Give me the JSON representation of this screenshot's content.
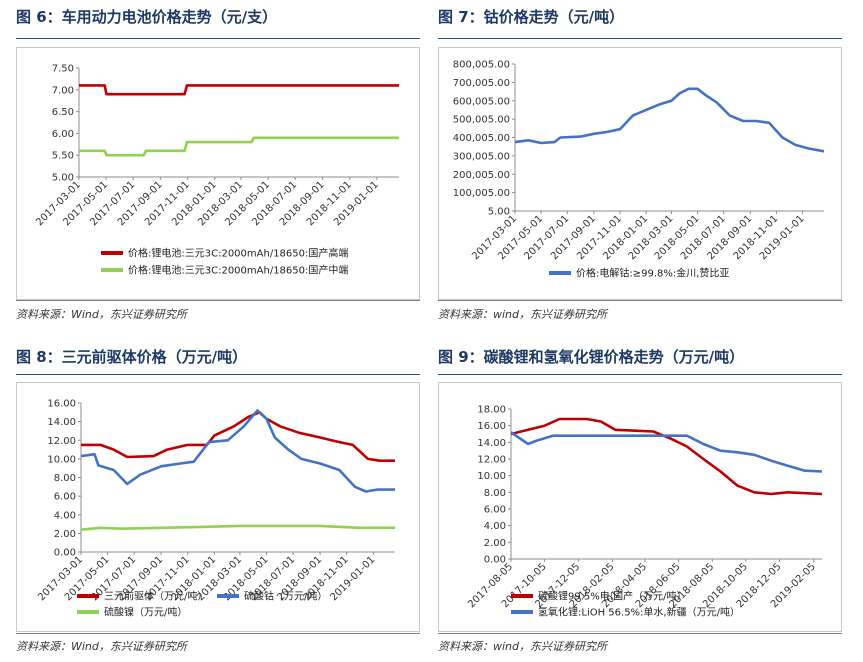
{
  "panels": [
    {
      "id": "fig6",
      "title": "图 6：车用动力电池价格走势（元/支）",
      "source": "资料来源：Wind，东兴证券研究所"
    },
    {
      "id": "fig7",
      "title": "图 7：钴价格走势（元/吨）",
      "source": "资料来源：wind，东兴证券研究所"
    },
    {
      "id": "fig8",
      "title": "图 8：三元前驱体价格（万元/吨）",
      "source": "资料来源：Wind，东兴证券研究所"
    },
    {
      "id": "fig9",
      "title": "图 9：碳酸锂和氢氧化锂价格走势（万元/吨）",
      "source": "资料来源：wind，东兴证券研究所"
    }
  ],
  "chart_data": [
    {
      "type": "line",
      "title": "图 6：车用动力电池价格走势（元/支）",
      "x_ticks": [
        "2017-03-01",
        "2017-05-01",
        "2017-07-01",
        "2017-09-01",
        "2017-11-01",
        "2018-01-01",
        "2018-03-01",
        "2018-05-01",
        "2018-07-01",
        "2018-09-01",
        "2018-11-01",
        "2019-01-01"
      ],
      "ylim": [
        5.0,
        7.5
      ],
      "y_ticks": [
        "5.00",
        "5.50",
        "6.00",
        "6.50",
        "7.00",
        "7.50"
      ],
      "grid": false,
      "legend": "bottom",
      "series": [
        {
          "name": "价格:锂电池:三元3C:2000mAh/18650:国产高端",
          "color": "#c00000",
          "points": [
            [
              "2017-03-01",
              7.1
            ],
            [
              "2017-04-28",
              7.1
            ],
            [
              "2017-05-02",
              6.9
            ],
            [
              "2017-10-25",
              6.9
            ],
            [
              "2017-10-30",
              7.1
            ],
            [
              "2019-02-20",
              7.1
            ]
          ]
        },
        {
          "name": "价格:锂电池:三元3C:2000mAh/18650:国产中端",
          "color": "#92d050",
          "points": [
            [
              "2017-03-01",
              5.6
            ],
            [
              "2017-04-28",
              5.6
            ],
            [
              "2017-05-02",
              5.5
            ],
            [
              "2017-07-25",
              5.5
            ],
            [
              "2017-07-30",
              5.6
            ],
            [
              "2017-10-25",
              5.6
            ],
            [
              "2017-10-30",
              5.8
            ],
            [
              "2018-03-25",
              5.8
            ],
            [
              "2018-03-30",
              5.9
            ],
            [
              "2019-02-20",
              5.9
            ]
          ]
        }
      ]
    },
    {
      "type": "line",
      "title": "图 7：钴价格走势（元/吨）",
      "x_ticks": [
        "2017-03-01",
        "2017-05-01",
        "2017-07-01",
        "2017-09-01",
        "2017-11-01",
        "2018-01-01",
        "2018-03-01",
        "2018-05-01",
        "2018-07-01",
        "2018-09-01",
        "2018-11-01",
        "2019-01-01"
      ],
      "ylim": [
        5,
        800005
      ],
      "y_ticks": [
        "5.00",
        "100,005.00",
        "200,005.00",
        "300,005.00",
        "400,005.00",
        "500,005.00",
        "600,005.00",
        "700,005.00",
        "800,005.00"
      ],
      "grid": false,
      "legend": "bottom",
      "series": [
        {
          "name": "价格:电解钴:≥99.8%:金川,赞比亚",
          "color": "#4472c4",
          "points": [
            [
              "2017-03-01",
              375000
            ],
            [
              "2017-04-01",
              385000
            ],
            [
              "2017-05-01",
              370000
            ],
            [
              "2017-06-01",
              375000
            ],
            [
              "2017-06-15",
              400000
            ],
            [
              "2017-08-01",
              405000
            ],
            [
              "2017-09-01",
              420000
            ],
            [
              "2017-10-01",
              430000
            ],
            [
              "2017-11-01",
              445000
            ],
            [
              "2017-12-01",
              520000
            ],
            [
              "2018-01-01",
              550000
            ],
            [
              "2018-02-01",
              580000
            ],
            [
              "2018-03-01",
              600000
            ],
            [
              "2018-03-20",
              640000
            ],
            [
              "2018-04-10",
              665000
            ],
            [
              "2018-05-01",
              665000
            ],
            [
              "2018-05-20",
              630000
            ],
            [
              "2018-06-15",
              590000
            ],
            [
              "2018-07-15",
              520000
            ],
            [
              "2018-08-15",
              490000
            ],
            [
              "2018-09-15",
              490000
            ],
            [
              "2018-10-15",
              480000
            ],
            [
              "2018-11-15",
              400000
            ],
            [
              "2018-12-15",
              360000
            ],
            [
              "2019-01-15",
              340000
            ],
            [
              "2019-02-20",
              325000
            ]
          ]
        }
      ]
    },
    {
      "type": "line",
      "title": "图 8：三元前驱体价格（万元/吨）",
      "x_ticks": [
        "2017-03-01",
        "2017-05-01",
        "2017-07-01",
        "2017-09-01",
        "2017-11-01",
        "2018-01-01",
        "2018-03-01",
        "2018-05-01",
        "2018-07-01",
        "2018-09-01",
        "2018-11-01",
        "2019-01-01"
      ],
      "ylim": [
        0,
        16
      ],
      "y_ticks": [
        "0.00",
        "2.00",
        "4.00",
        "6.00",
        "8.00",
        "10.00",
        "12.00",
        "14.00",
        "16.00"
      ],
      "grid": false,
      "legend": "bottom",
      "series": [
        {
          "name": "三元前驱体（万元/吨）",
          "color": "#c00000",
          "points": [
            [
              "2017-03-01",
              11.5
            ],
            [
              "2017-04-15",
              11.5
            ],
            [
              "2017-05-15",
              11.0
            ],
            [
              "2017-06-15",
              10.2
            ],
            [
              "2017-08-15",
              10.3
            ],
            [
              "2017-09-15",
              11.0
            ],
            [
              "2017-11-01",
              11.5
            ],
            [
              "2017-12-15",
              11.5
            ],
            [
              "2018-01-01",
              12.5
            ],
            [
              "2018-02-15",
              13.5
            ],
            [
              "2018-03-20",
              14.5
            ],
            [
              "2018-04-15",
              15.0
            ],
            [
              "2018-05-01",
              14.3
            ],
            [
              "2018-06-01",
              13.5
            ],
            [
              "2018-07-15",
              12.8
            ],
            [
              "2018-09-01",
              12.3
            ],
            [
              "2018-10-15",
              11.8
            ],
            [
              "2018-11-15",
              11.5
            ],
            [
              "2018-12-20",
              10.0
            ],
            [
              "2019-01-15",
              9.8
            ],
            [
              "2019-02-20",
              9.8
            ]
          ]
        },
        {
          "name": "硫酸钴（万元/吨）",
          "color": "#4472c4",
          "points": [
            [
              "2017-03-01",
              10.3
            ],
            [
              "2017-04-01",
              10.5
            ],
            [
              "2017-04-10",
              9.3
            ],
            [
              "2017-05-15",
              8.8
            ],
            [
              "2017-06-15",
              7.3
            ],
            [
              "2017-07-15",
              8.3
            ],
            [
              "2017-09-01",
              9.2
            ],
            [
              "2017-10-15",
              9.5
            ],
            [
              "2017-11-15",
              9.7
            ],
            [
              "2017-12-20",
              11.8
            ],
            [
              "2018-02-01",
              12.0
            ],
            [
              "2018-03-10",
              13.5
            ],
            [
              "2018-04-10",
              15.2
            ],
            [
              "2018-05-01",
              14.3
            ],
            [
              "2018-05-20",
              12.3
            ],
            [
              "2018-06-20",
              11.0
            ],
            [
              "2018-07-20",
              10.0
            ],
            [
              "2018-09-01",
              9.5
            ],
            [
              "2018-10-15",
              8.8
            ],
            [
              "2018-11-20",
              7.0
            ],
            [
              "2018-12-15",
              6.5
            ],
            [
              "2019-01-10",
              6.7
            ],
            [
              "2019-02-20",
              6.7
            ]
          ]
        },
        {
          "name": "硫酸镍（万元/吨）",
          "color": "#92d050",
          "points": [
            [
              "2017-03-01",
              2.4
            ],
            [
              "2017-04-15",
              2.6
            ],
            [
              "2017-06-01",
              2.5
            ],
            [
              "2017-09-01",
              2.6
            ],
            [
              "2017-12-01",
              2.7
            ],
            [
              "2018-03-01",
              2.8
            ],
            [
              "2018-06-01",
              2.8
            ],
            [
              "2018-09-01",
              2.8
            ],
            [
              "2018-12-01",
              2.6
            ],
            [
              "2019-02-20",
              2.6
            ]
          ]
        }
      ]
    },
    {
      "type": "line",
      "title": "图 9：碳酸锂和氢氧化锂价格走势（万元/吨）",
      "x_ticks": [
        "2017-08-05",
        "2017-10-05",
        "2017-12-05",
        "2018-02-05",
        "2018-04-05",
        "2018-06-05",
        "2018-08-05",
        "2018-10-05",
        "2018-12-05",
        "2019-02-05"
      ],
      "ylim": [
        0,
        18
      ],
      "y_ticks": [
        "0.00",
        "2.00",
        "4.00",
        "6.00",
        "8.00",
        "10.00",
        "12.00",
        "14.00",
        "16.00",
        "18.00"
      ],
      "grid": false,
      "legend": "bottom",
      "series": [
        {
          "name": "碳酸锂99.5%电:国产（万元/吨）",
          "color": "#c00000",
          "points": [
            [
              "2017-08-05",
              15.0
            ],
            [
              "2017-09-05",
              15.5
            ],
            [
              "2017-10-05",
              16.0
            ],
            [
              "2017-11-01",
              16.8
            ],
            [
              "2017-12-20",
              16.8
            ],
            [
              "2018-01-15",
              16.5
            ],
            [
              "2018-02-10",
              15.5
            ],
            [
              "2018-04-20",
              15.3
            ],
            [
              "2018-05-20",
              14.5
            ],
            [
              "2018-06-20",
              13.5
            ],
            [
              "2018-07-20",
              12.0
            ],
            [
              "2018-08-20",
              10.5
            ],
            [
              "2018-09-20",
              8.8
            ],
            [
              "2018-10-20",
              8.0
            ],
            [
              "2018-11-20",
              7.8
            ],
            [
              "2018-12-20",
              8.0
            ],
            [
              "2019-02-20",
              7.8
            ]
          ]
        },
        {
          "name": "氢氧化锂:LiOH 56.5%:单水,新疆（万元/吨）",
          "color": "#4472c4",
          "points": [
            [
              "2017-08-05",
              15.2
            ],
            [
              "2017-09-05",
              13.8
            ],
            [
              "2017-09-20",
              14.2
            ],
            [
              "2017-10-20",
              14.8
            ],
            [
              "2018-06-20",
              14.8
            ],
            [
              "2018-07-20",
              13.8
            ],
            [
              "2018-08-20",
              13.0
            ],
            [
              "2018-09-20",
              12.8
            ],
            [
              "2018-10-20",
              12.5
            ],
            [
              "2018-11-20",
              11.8
            ],
            [
              "2018-12-20",
              11.2
            ],
            [
              "2019-01-20",
              10.6
            ],
            [
              "2019-02-20",
              10.5
            ]
          ]
        }
      ]
    }
  ]
}
